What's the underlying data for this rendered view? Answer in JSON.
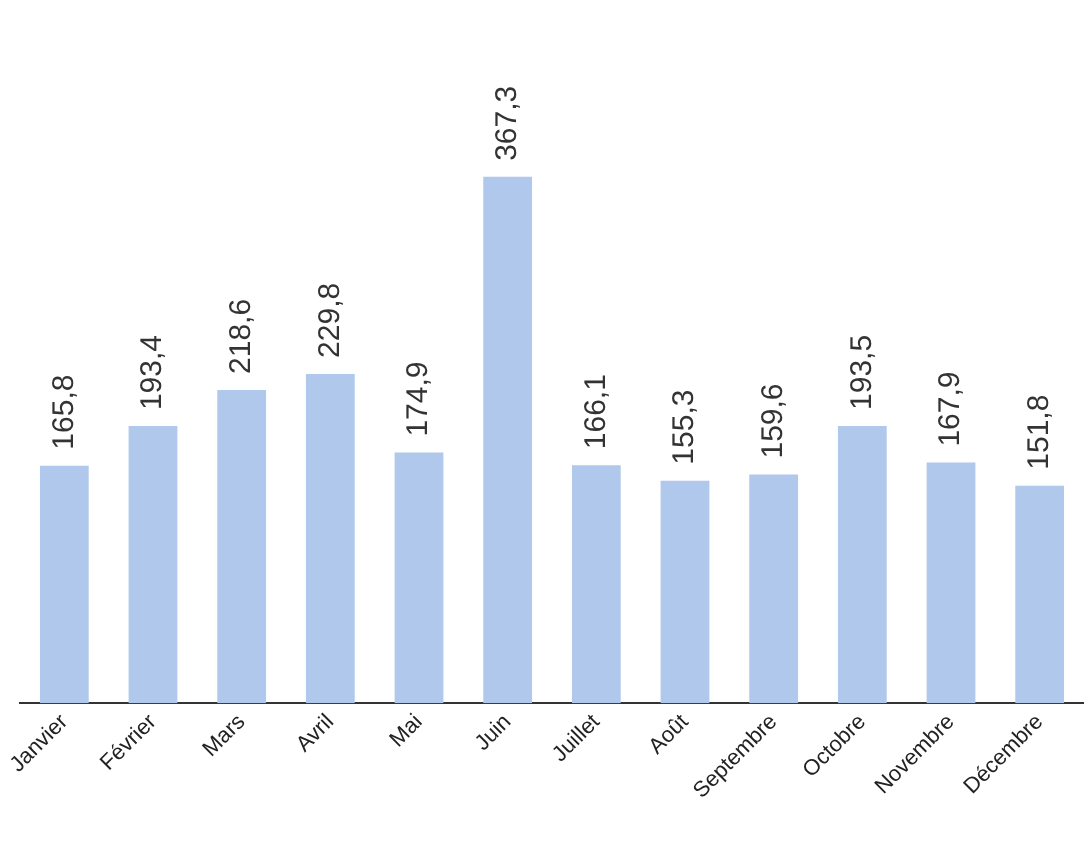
{
  "chart_data": {
    "type": "bar",
    "categories": [
      "Janvier",
      "Février",
      "Mars",
      "Avril",
      "Mai",
      "Juin",
      "Juillet",
      "Août",
      "Septembre",
      "Octobre",
      "Novembre",
      "Décembre"
    ],
    "values": [
      165.8,
      193.4,
      218.6,
      229.8,
      174.9,
      367.3,
      166.1,
      155.3,
      159.6,
      193.5,
      167.9,
      151.8
    ],
    "value_labels": [
      "165,8",
      "193,4",
      "218,6",
      "229,8",
      "174,9",
      "367,3",
      "166,1",
      "155,3",
      "159,6",
      "193,5",
      "167,9",
      "151,8"
    ],
    "color": "#afc8eb",
    "grid": false,
    "legend": false
  }
}
